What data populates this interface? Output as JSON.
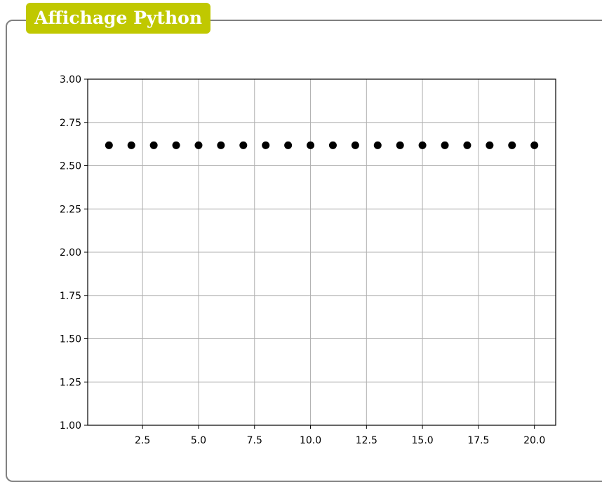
{
  "panel": {
    "title": "Affichage Python",
    "accent_color": "#c0c800",
    "border_color": "#808080"
  },
  "chart_data": {
    "type": "scatter",
    "x": [
      1,
      2,
      3,
      4,
      5,
      6,
      7,
      8,
      9,
      10,
      11,
      12,
      13,
      14,
      15,
      16,
      17,
      18,
      19,
      20
    ],
    "y": [
      2.618,
      2.618,
      2.618,
      2.618,
      2.618,
      2.618,
      2.618,
      2.618,
      2.618,
      2.618,
      2.618,
      2.618,
      2.618,
      2.618,
      2.618,
      2.618,
      2.618,
      2.618,
      2.618,
      2.618
    ],
    "marker_color": "#000000",
    "xlim": [
      0.05,
      20.95
    ],
    "ylim": [
      1.0,
      3.0
    ],
    "x_ticks": [
      2.5,
      5.0,
      7.5,
      10.0,
      12.5,
      15.0,
      17.5,
      20.0
    ],
    "y_ticks": [
      1.0,
      1.25,
      1.5,
      1.75,
      2.0,
      2.25,
      2.5,
      2.75,
      3.0
    ],
    "x_tick_labels": [
      "2.5",
      "5.0",
      "7.5",
      "10.0",
      "12.5",
      "15.0",
      "17.5",
      "20.0"
    ],
    "y_tick_labels": [
      "1.00",
      "1.25",
      "1.50",
      "1.75",
      "2.00",
      "2.25",
      "2.50",
      "2.75",
      "3.00"
    ],
    "grid": true,
    "grid_color": "#b0b0b0",
    "title": "",
    "xlabel": "",
    "ylabel": ""
  }
}
